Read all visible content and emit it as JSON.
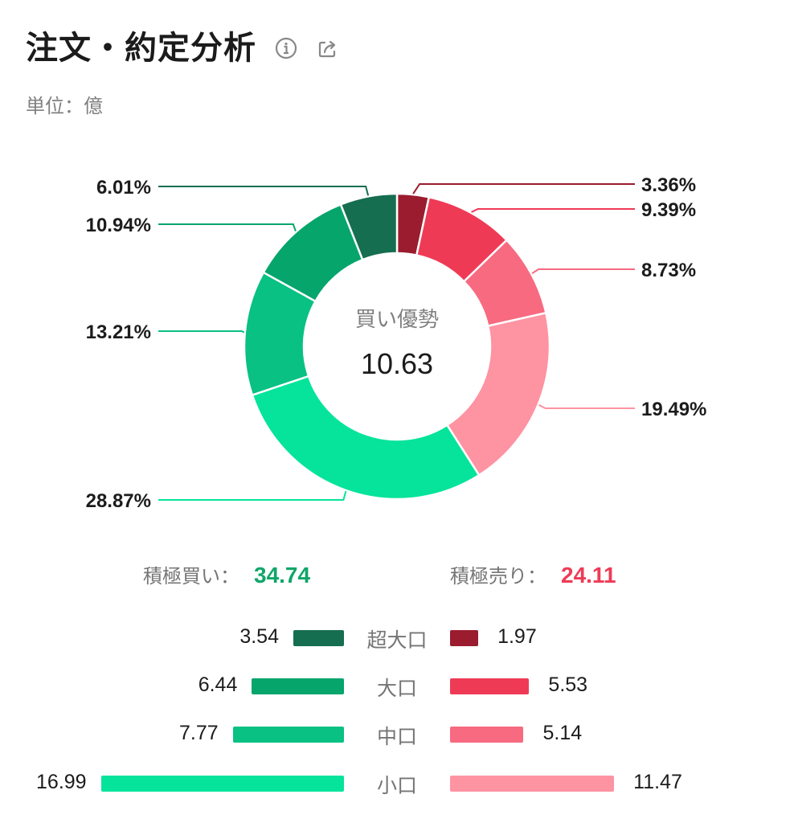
{
  "header": {
    "title": "注文・約定分析",
    "info_icon": "info-circle-icon",
    "share_icon": "share-icon"
  },
  "unit_label": "単位：億",
  "center": {
    "label": "買い優勢",
    "value": "10.63"
  },
  "summary": {
    "buy_label": "積極買い：",
    "buy_value": "34.74",
    "sell_label": "積極売り：",
    "sell_value": "24.11"
  },
  "colors": {
    "buy_accent": "#10a66a",
    "sell_accent": "#ee3b57"
  },
  "chart_data": [
    {
      "type": "pie",
      "subtype": "donut",
      "title": "注文・約定分析",
      "center_label": "買い優勢",
      "center_value": 10.63,
      "slices": [
        {
          "label": "売り 超大口",
          "value": 3.36,
          "display": "3.36%",
          "color": "#9a1c2e",
          "side": "right"
        },
        {
          "label": "売り 大口",
          "value": 9.39,
          "display": "9.39%",
          "color": "#ef3a56",
          "side": "right"
        },
        {
          "label": "売り 中口",
          "value": 8.73,
          "display": "8.73%",
          "color": "#f76a80",
          "side": "right"
        },
        {
          "label": "売り 小口",
          "value": 19.49,
          "display": "19.49%",
          "color": "#fe93a2",
          "side": "right"
        },
        {
          "label": "買い 小口",
          "value": 28.87,
          "display": "28.87%",
          "color": "#05e49a",
          "side": "left"
        },
        {
          "label": "買い 中口",
          "value": 13.21,
          "display": "13.21%",
          "color": "#08c183",
          "side": "left"
        },
        {
          "label": "買い 大口",
          "value": 10.94,
          "display": "10.94%",
          "color": "#05a56c",
          "side": "left"
        },
        {
          "label": "買い 超大口",
          "value": 6.01,
          "display": "6.01%",
          "color": "#156e4f",
          "side": "left"
        }
      ]
    },
    {
      "type": "bar",
      "subtype": "diverging-horizontal",
      "unit": "億",
      "categories": [
        "超大口",
        "大口",
        "中口",
        "小口"
      ],
      "series": [
        {
          "name": "買い",
          "values": [
            3.54,
            6.44,
            7.77,
            16.99
          ],
          "display": [
            "3.54",
            "6.44",
            "7.77",
            "16.99"
          ],
          "colors": [
            "#156e4f",
            "#05a56c",
            "#08c183",
            "#05e49a"
          ]
        },
        {
          "name": "売り",
          "values": [
            1.97,
            5.53,
            5.14,
            11.47
          ],
          "display": [
            "1.97",
            "5.53",
            "5.14",
            "11.47"
          ],
          "colors": [
            "#9a1c2e",
            "#ef3a56",
            "#f76a80",
            "#fe93a2"
          ]
        }
      ],
      "totals": {
        "buy": 34.74,
        "sell": 24.11
      }
    }
  ]
}
